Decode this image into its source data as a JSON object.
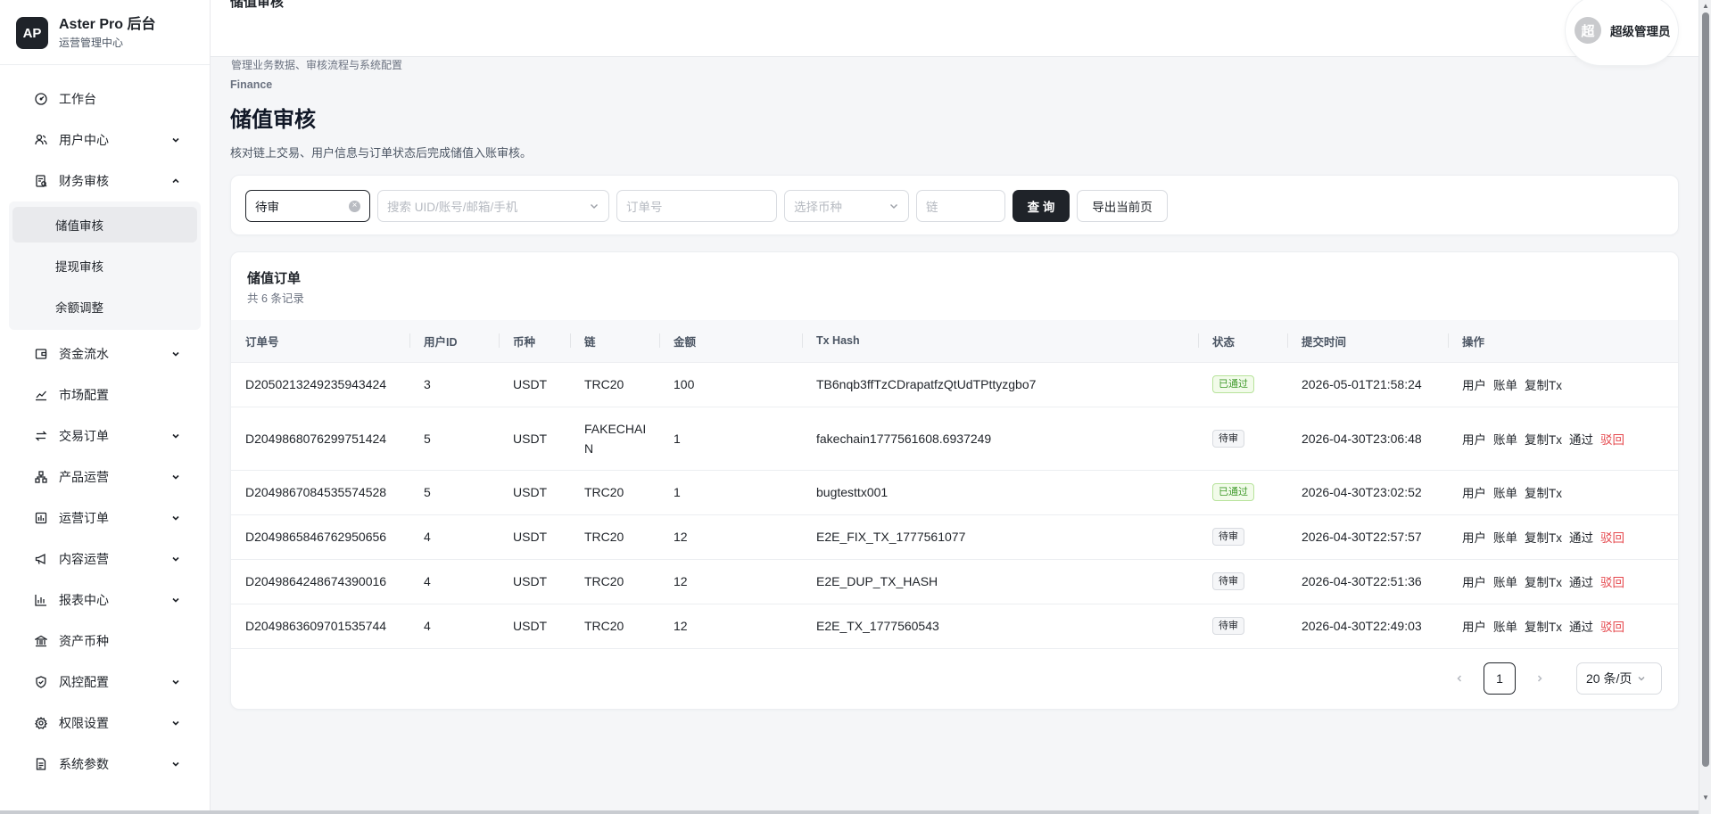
{
  "brand": {
    "logo": "AP",
    "name": "Aster Pro 后台",
    "subtitle": "运营管理中心"
  },
  "header": {
    "title": "储值审核",
    "user": {
      "avatar_text": "超",
      "name": "超级管理员"
    }
  },
  "sidebar": {
    "items": [
      {
        "label": "工作台",
        "icon": "dashboard-icon",
        "has_children": false
      },
      {
        "label": "用户中心",
        "icon": "users-icon",
        "has_children": true
      },
      {
        "label": "财务审核",
        "icon": "audit-icon",
        "has_children": true,
        "expanded": true,
        "children": [
          {
            "label": "储值审核",
            "active": true
          },
          {
            "label": "提现审核",
            "active": false
          },
          {
            "label": "余额调整",
            "active": false
          }
        ]
      },
      {
        "label": "资金流水",
        "icon": "wallet-icon",
        "has_children": true
      },
      {
        "label": "市场配置",
        "icon": "chart-line-icon",
        "has_children": false
      },
      {
        "label": "交易订单",
        "icon": "swap-icon",
        "has_children": true
      },
      {
        "label": "产品运营",
        "icon": "product-icon",
        "has_children": true
      },
      {
        "label": "运营订单",
        "icon": "order-icon",
        "has_children": true
      },
      {
        "label": "内容运营",
        "icon": "megaphone-icon",
        "has_children": true
      },
      {
        "label": "报表中心",
        "icon": "bar-chart-icon",
        "has_children": true
      },
      {
        "label": "资产币种",
        "icon": "bank-icon",
        "has_children": false
      },
      {
        "label": "风控配置",
        "icon": "shield-icon",
        "has_children": true
      },
      {
        "label": "权限设置",
        "icon": "gear-icon",
        "has_children": true
      },
      {
        "label": "系统参数",
        "icon": "document-icon",
        "has_children": true
      }
    ]
  },
  "page": {
    "description": "管理业务数据、审核流程与系统配置",
    "eyebrow": "Finance",
    "title": "储值审核",
    "subtitle": "核对链上交易、用户信息与订单状态后完成储值入账审核。"
  },
  "filters": {
    "status_value": "待审",
    "user_placeholder": "搜索 UID/账号/邮箱/手机",
    "order_placeholder": "订单号",
    "coin_placeholder": "选择币种",
    "chain_placeholder": "链",
    "query_label": "查 询",
    "export_label": "导出当前页"
  },
  "table": {
    "title": "储值订单",
    "count_text": "共 6 条记录",
    "columns": [
      "订单号",
      "用户ID",
      "币种",
      "链",
      "金额",
      "Tx Hash",
      "状态",
      "提交时间",
      "操作"
    ],
    "rows": [
      {
        "order_no": "D2050213249235943424",
        "uid": "3",
        "coin": "USDT",
        "chain": "TRC20",
        "amount": "100",
        "tx_hash": "TB6nqb3ffTzCDrapatfzQtUdTPttyzgbo7",
        "status": "已通过",
        "status_type": "ok",
        "time": "2026-05-01T21:58:24",
        "actions": [
          "用户",
          "账单",
          "复制Tx"
        ]
      },
      {
        "order_no": "D2049868076299751424",
        "uid": "5",
        "coin": "USDT",
        "chain": "FAKECHAIN",
        "amount": "1",
        "tx_hash": "fakechain1777561608.6937249",
        "status": "待审",
        "status_type": "pending",
        "time": "2026-04-30T23:06:48",
        "actions": [
          "用户",
          "账单",
          "复制Tx",
          "通过",
          "驳回"
        ]
      },
      {
        "order_no": "D2049867084535574528",
        "uid": "5",
        "coin": "USDT",
        "chain": "TRC20",
        "amount": "1",
        "tx_hash": "bugtesttx001",
        "status": "已通过",
        "status_type": "ok",
        "time": "2026-04-30T23:02:52",
        "actions": [
          "用户",
          "账单",
          "复制Tx"
        ]
      },
      {
        "order_no": "D2049865846762950656",
        "uid": "4",
        "coin": "USDT",
        "chain": "TRC20",
        "amount": "12",
        "tx_hash": "E2E_FIX_TX_1777561077",
        "status": "待审",
        "status_type": "pending",
        "time": "2026-04-30T22:57:57",
        "actions": [
          "用户",
          "账单",
          "复制Tx",
          "通过",
          "驳回"
        ]
      },
      {
        "order_no": "D2049864248674390016",
        "uid": "4",
        "coin": "USDT",
        "chain": "TRC20",
        "amount": "12",
        "tx_hash": "E2E_DUP_TX_HASH",
        "status": "待审",
        "status_type": "pending",
        "time": "2026-04-30T22:51:36",
        "actions": [
          "用户",
          "账单",
          "复制Tx",
          "通过",
          "驳回"
        ]
      },
      {
        "order_no": "D2049863609701535744",
        "uid": "4",
        "coin": "USDT",
        "chain": "TRC20",
        "amount": "12",
        "tx_hash": "E2E_TX_1777560543",
        "status": "待审",
        "status_type": "pending",
        "time": "2026-04-30T22:49:03",
        "actions": [
          "用户",
          "账单",
          "复制Tx",
          "通过",
          "驳回"
        ]
      }
    ]
  },
  "pagination": {
    "current_page": "1",
    "page_size_label": "20 条/页"
  },
  "colors": {
    "primary": "#1f2329",
    "danger": "#e5484d",
    "success": "#3f9a2a",
    "background": "#f5f6f8"
  }
}
